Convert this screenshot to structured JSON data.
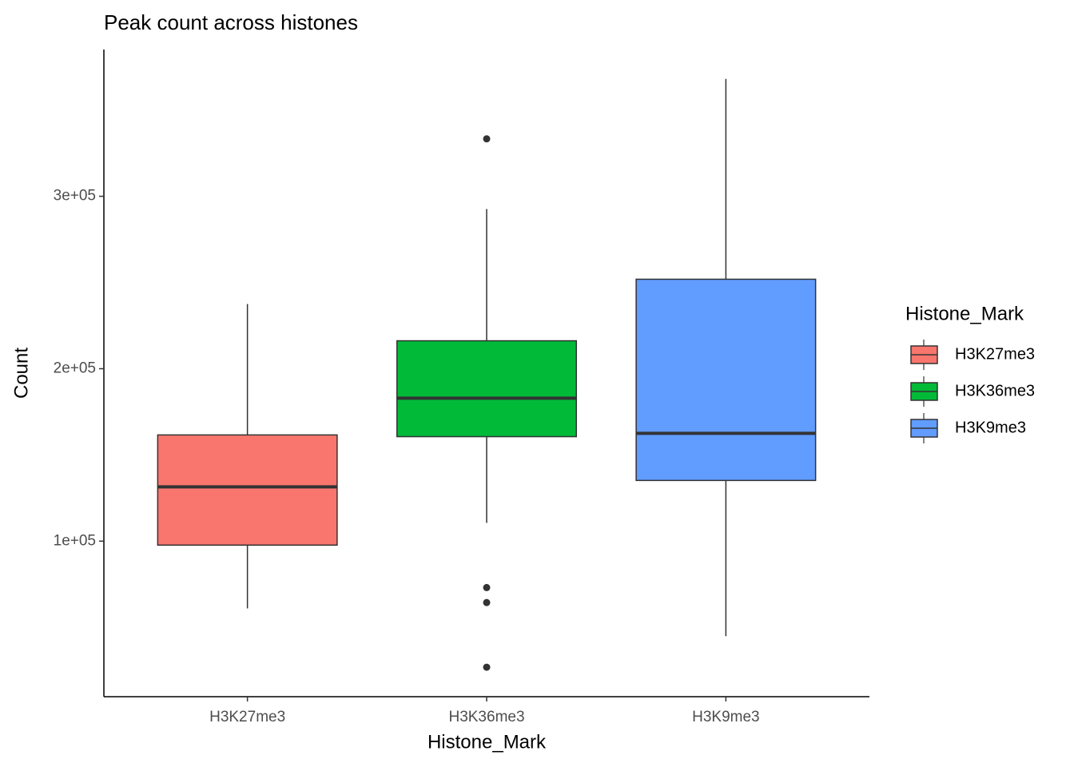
{
  "chart_data": {
    "type": "box",
    "title": "Peak count across histones",
    "x_label": "Histone_Mark",
    "y_label": "Count",
    "legend_title": "Histone_Mark",
    "categories": [
      "H3K27me3",
      "H3K36me3",
      "H3K9me3"
    ],
    "colors": [
      "#F8766D",
      "#00BA38",
      "#619CFF"
    ],
    "boxes": [
      {
        "min": 61000,
        "q1": 97700,
        "median": 131500,
        "q3": 161600,
        "max": 237500,
        "outliers": []
      },
      {
        "min": 110600,
        "q1": 160600,
        "median": 182900,
        "q3": 216200,
        "max": 292600,
        "outliers": [
          333300,
          73100,
          64400,
          26900
        ]
      },
      {
        "min": 44900,
        "q1": 135200,
        "median": 162500,
        "q3": 251900,
        "max": 368100,
        "outliers": []
      }
    ],
    "ylim": [
      9800,
      385100
    ],
    "yticks": [
      {
        "value": 100000,
        "label": "1e+05"
      },
      {
        "value": 200000,
        "label": "2e+05"
      },
      {
        "value": 300000,
        "label": "3e+05"
      }
    ],
    "grid": false,
    "legend_position": "right"
  }
}
